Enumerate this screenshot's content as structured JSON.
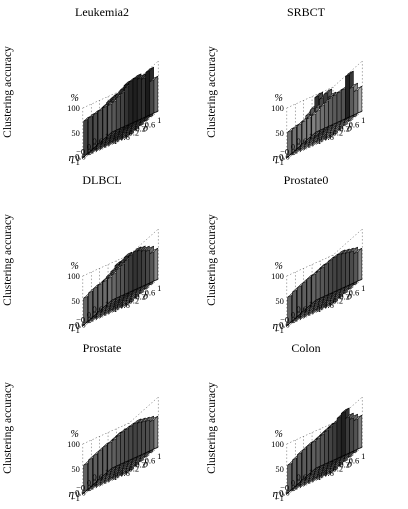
{
  "figure": {
    "zlabel": "Clustering accuracy",
    "zunit": "%",
    "xlabel": "δ",
    "ylabel": "η",
    "x_ticks": [
      "−1",
      "−0.6",
      "−0.2",
      "0.2",
      "0.6",
      "1"
    ],
    "y_ticks": [
      "−1",
      "−0.6",
      "−0.2",
      "0.2",
      "0.6",
      "1"
    ],
    "z_ticks": [
      "0",
      "50",
      "100"
    ]
  },
  "chart_data": [
    {
      "type": "bar3d",
      "title": "Leukemia2",
      "x": [
        -1,
        -0.8,
        -0.6,
        -0.4,
        -0.2,
        0,
        0.2,
        0.4,
        0.6,
        0.8,
        1
      ],
      "y": [
        -1,
        -0.6,
        -0.2,
        0.2,
        0.6,
        1
      ],
      "zlim": [
        0,
        100
      ],
      "values": [
        [
          60,
          62,
          68,
          72,
          80,
          88,
          90,
          86,
          82,
          92,
          70
        ],
        [
          64,
          66,
          72,
          78,
          84,
          90,
          86,
          82,
          80,
          84,
          72
        ],
        [
          66,
          70,
          76,
          80,
          82,
          84,
          80,
          78,
          76,
          80,
          74
        ],
        [
          68,
          70,
          74,
          76,
          78,
          80,
          76,
          74,
          72,
          76,
          70
        ],
        [
          70,
          68,
          70,
          72,
          72,
          74,
          72,
          70,
          68,
          70,
          66
        ],
        [
          72,
          66,
          64,
          66,
          64,
          66,
          62,
          60,
          58,
          62,
          60
        ]
      ]
    },
    {
      "type": "bar3d",
      "title": "SRBCT",
      "x": [
        -1,
        -0.8,
        -0.6,
        -0.4,
        -0.2,
        0,
        0.2,
        0.4,
        0.6,
        0.8,
        1
      ],
      "y": [
        -1,
        -0.6,
        -0.2,
        0.2,
        0.6,
        1
      ],
      "zlim": [
        0,
        100
      ],
      "values": [
        [
          40,
          44,
          50,
          54,
          58,
          60,
          62,
          64,
          88,
          60,
          50
        ],
        [
          42,
          46,
          56,
          70,
          76,
          66,
          60,
          58,
          56,
          54,
          48
        ],
        [
          44,
          48,
          62,
          82,
          74,
          64,
          56,
          54,
          52,
          50,
          46
        ],
        [
          46,
          50,
          58,
          64,
          60,
          56,
          52,
          50,
          48,
          48,
          44
        ],
        [
          48,
          50,
          52,
          54,
          52,
          50,
          48,
          46,
          44,
          44,
          42
        ],
        [
          50,
          48,
          46,
          46,
          44,
          42,
          40,
          40,
          38,
          40,
          38
        ]
      ]
    },
    {
      "type": "bar3d",
      "title": "DLBCL",
      "x": [
        -1,
        -0.8,
        -0.6,
        -0.4,
        -0.2,
        0,
        0.2,
        0.4,
        0.6,
        0.8,
        1
      ],
      "y": [
        -1,
        -0.6,
        -0.2,
        0.2,
        0.6,
        1
      ],
      "zlim": [
        0,
        100
      ],
      "values": [
        [
          50,
          54,
          60,
          64,
          70,
          76,
          80,
          78,
          74,
          70,
          62
        ],
        [
          52,
          56,
          62,
          68,
          74,
          82,
          78,
          72,
          68,
          66,
          60
        ],
        [
          54,
          58,
          64,
          70,
          78,
          80,
          72,
          68,
          64,
          62,
          58
        ],
        [
          56,
          58,
          62,
          66,
          70,
          72,
          68,
          64,
          60,
          58,
          56
        ],
        [
          56,
          56,
          58,
          60,
          62,
          62,
          60,
          58,
          56,
          54,
          52
        ],
        [
          54,
          52,
          52,
          54,
          54,
          54,
          52,
          50,
          50,
          50,
          50
        ]
      ]
    },
    {
      "type": "bar3d",
      "title": "Prostate0",
      "x": [
        -1,
        -0.8,
        -0.6,
        -0.4,
        -0.2,
        0,
        0.2,
        0.4,
        0.6,
        0.8,
        1
      ],
      "y": [
        -1,
        -0.6,
        -0.2,
        0.2,
        0.6,
        1
      ],
      "zlim": [
        0,
        100
      ],
      "values": [
        [
          56,
          58,
          62,
          66,
          70,
          72,
          74,
          72,
          70,
          68,
          62
        ],
        [
          58,
          60,
          64,
          68,
          70,
          72,
          70,
          68,
          66,
          64,
          60
        ],
        [
          58,
          60,
          62,
          66,
          68,
          70,
          68,
          66,
          64,
          62,
          60
        ],
        [
          58,
          58,
          60,
          62,
          64,
          64,
          62,
          62,
          60,
          60,
          58
        ],
        [
          58,
          56,
          56,
          58,
          58,
          58,
          58,
          56,
          56,
          56,
          56
        ],
        [
          56,
          54,
          54,
          54,
          54,
          54,
          54,
          54,
          54,
          54,
          54
        ]
      ]
    },
    {
      "type": "bar3d",
      "title": "Prostate",
      "x": [
        -1,
        -0.8,
        -0.6,
        -0.4,
        -0.2,
        0,
        0.2,
        0.4,
        0.6,
        0.8,
        1
      ],
      "y": [
        -1,
        -0.6,
        -0.2,
        0.2,
        0.6,
        1
      ],
      "zlim": [
        0,
        100
      ],
      "values": [
        [
          56,
          58,
          62,
          66,
          68,
          70,
          72,
          70,
          68,
          66,
          62
        ],
        [
          58,
          60,
          64,
          68,
          70,
          70,
          70,
          68,
          66,
          64,
          60
        ],
        [
          58,
          60,
          62,
          66,
          68,
          68,
          66,
          64,
          62,
          62,
          60
        ],
        [
          58,
          58,
          60,
          62,
          64,
          64,
          62,
          60,
          60,
          58,
          58
        ],
        [
          58,
          56,
          56,
          58,
          58,
          58,
          58,
          56,
          56,
          56,
          56
        ],
        [
          56,
          54,
          54,
          54,
          54,
          54,
          54,
          54,
          54,
          54,
          54
        ]
      ]
    },
    {
      "type": "bar3d",
      "title": "Colon",
      "x": [
        -1,
        -0.8,
        -0.6,
        -0.4,
        -0.2,
        0,
        0.2,
        0.4,
        0.6,
        0.8,
        1
      ],
      "y": [
        -1,
        -0.6,
        -0.2,
        0.2,
        0.6,
        1
      ],
      "zlim": [
        0,
        100
      ],
      "values": [
        [
          58,
          60,
          64,
          68,
          72,
          76,
          84,
          90,
          76,
          70,
          64
        ],
        [
          60,
          62,
          66,
          70,
          74,
          78,
          80,
          76,
          72,
          68,
          62
        ],
        [
          60,
          62,
          64,
          68,
          72,
          74,
          74,
          72,
          68,
          66,
          62
        ],
        [
          60,
          60,
          62,
          64,
          66,
          68,
          68,
          66,
          64,
          62,
          60
        ],
        [
          58,
          58,
          58,
          60,
          62,
          62,
          62,
          60,
          60,
          58,
          58
        ],
        [
          56,
          56,
          56,
          56,
          58,
          58,
          58,
          56,
          56,
          56,
          56
        ]
      ]
    }
  ]
}
